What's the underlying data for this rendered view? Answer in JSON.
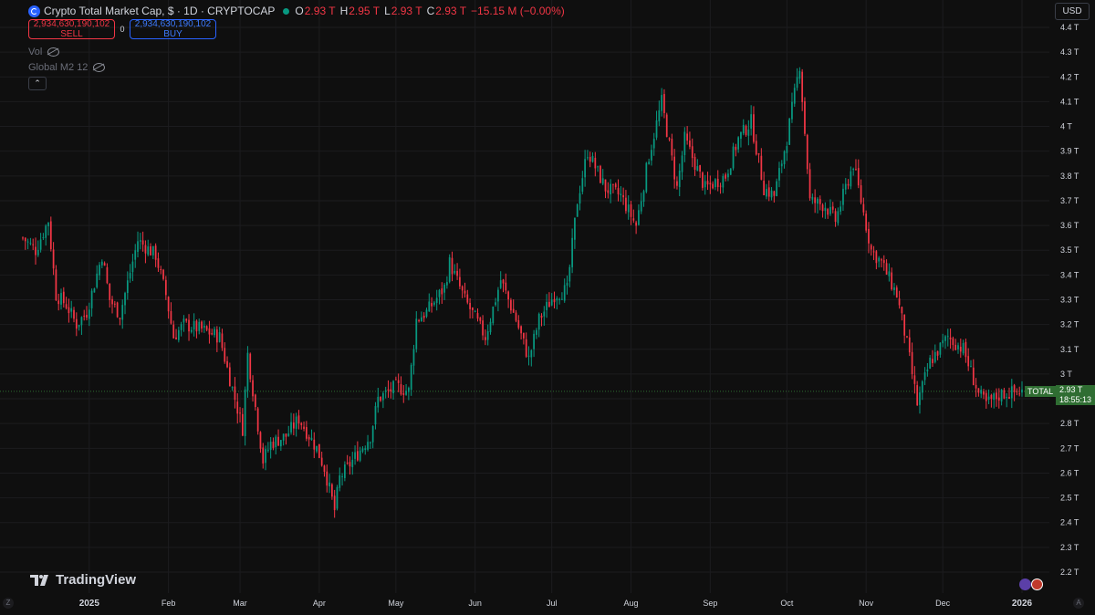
{
  "header": {
    "title": "Crypto Total Market Cap, $ · 1D · CRYPTOCAP",
    "ohlc": [
      {
        "k": "O",
        "v": "2.93 T"
      },
      {
        "k": "H",
        "v": "2.95 T"
      },
      {
        "k": "L",
        "v": "2.93 T"
      },
      {
        "k": "C",
        "v": "2.93 T"
      }
    ],
    "change": "−15.15 M (−0.00%)"
  },
  "trade": {
    "sell_price": "2,934,630,190,102",
    "sell_label": "SELL",
    "spread": "0",
    "buy_price": "2,934,630,190,102",
    "buy_label": "BUY"
  },
  "indicators": [
    "Vol",
    "Global M2 12"
  ],
  "currency": "USD",
  "logo_text": "TradingView",
  "last_price": {
    "symbol": "TOTAL",
    "value": "2.93 T",
    "countdown": "18:55:13"
  },
  "corners": {
    "left": "Z",
    "right": "A"
  },
  "colors": {
    "up": "#089981",
    "down": "#f23645",
    "background": "#0f0f0f",
    "grid": "#1c1c1f"
  },
  "chart_data": {
    "type": "candlestick",
    "title": "Crypto Total Market Cap, $ · 1D · CRYPTOCAP",
    "y_axis_labels": [
      "4.4 T",
      "4.3 T",
      "4.2 T",
      "4.1 T",
      "4 T",
      "3.9 T",
      "3.8 T",
      "3.7 T",
      "3.6 T",
      "3.5 T",
      "3.4 T",
      "3.3 T",
      "3.2 T",
      "3.1 T",
      "3 T",
      "2.9 T",
      "2.8 T",
      "2.7 T",
      "2.6 T",
      "2.5 T",
      "2.4 T",
      "2.3 T",
      "2.2 T"
    ],
    "y_ticks": [
      4.4,
      4.3,
      4.2,
      4.1,
      4.0,
      3.9,
      3.8,
      3.7,
      3.6,
      3.5,
      3.4,
      3.3,
      3.2,
      3.1,
      3.0,
      2.9,
      2.8,
      2.7,
      2.6,
      2.5,
      2.4,
      2.3,
      2.2
    ],
    "x_axis_labels": [
      "2025",
      "Feb",
      "Mar",
      "Apr",
      "May",
      "Jun",
      "Jul",
      "Aug",
      "Sep",
      "Oct",
      "Nov",
      "Dec",
      "2026"
    ],
    "ylim": [
      2.2,
      4.4
    ],
    "ylabel_unit": "T USD",
    "x_start": "2024-12-06",
    "x_end": "2026-01-01",
    "close_path": [
      [
        "2024-12-06",
        3.55
      ],
      [
        "2024-12-11",
        3.5
      ],
      [
        "2024-12-16",
        3.62
      ],
      [
        "2024-12-19",
        3.32
      ],
      [
        "2024-12-23",
        3.28
      ],
      [
        "2024-12-27",
        3.2
      ],
      [
        "2024-12-31",
        3.25
      ],
      [
        "2025-01-06",
        3.48
      ],
      [
        "2025-01-09",
        3.3
      ],
      [
        "2025-01-13",
        3.24
      ],
      [
        "2025-01-20",
        3.54
      ],
      [
        "2025-01-27",
        3.48
      ],
      [
        "2025-01-31",
        3.32
      ],
      [
        "2025-02-03",
        3.15
      ],
      [
        "2025-02-07",
        3.2
      ],
      [
        "2025-02-14",
        3.18
      ],
      [
        "2025-02-21",
        3.15
      ],
      [
        "2025-02-25",
        2.98
      ],
      [
        "2025-03-02",
        2.78
      ],
      [
        "2025-03-04",
        3.08
      ],
      [
        "2025-03-10",
        2.65
      ],
      [
        "2025-03-13",
        2.72
      ],
      [
        "2025-03-19",
        2.75
      ],
      [
        "2025-03-24",
        2.82
      ],
      [
        "2025-03-31",
        2.7
      ],
      [
        "2025-04-03",
        2.62
      ],
      [
        "2025-04-07",
        2.45
      ],
      [
        "2025-04-09",
        2.58
      ],
      [
        "2025-04-14",
        2.65
      ],
      [
        "2025-04-21",
        2.75
      ],
      [
        "2025-04-24",
        2.9
      ],
      [
        "2025-05-01",
        2.95
      ],
      [
        "2025-05-06",
        2.93
      ],
      [
        "2025-05-09",
        3.22
      ],
      [
        "2025-05-13",
        3.25
      ],
      [
        "2025-05-20",
        3.35
      ],
      [
        "2025-05-22",
        3.45
      ],
      [
        "2025-05-28",
        3.3
      ],
      [
        "2025-06-05",
        3.15
      ],
      [
        "2025-06-11",
        3.38
      ],
      [
        "2025-06-17",
        3.22
      ],
      [
        "2025-06-22",
        3.06
      ],
      [
        "2025-06-26",
        3.22
      ],
      [
        "2025-07-02",
        3.32
      ],
      [
        "2025-07-07",
        3.34
      ],
      [
        "2025-07-11",
        3.7
      ],
      [
        "2025-07-15",
        3.9
      ],
      [
        "2025-07-22",
        3.75
      ],
      [
        "2025-07-28",
        3.72
      ],
      [
        "2025-08-03",
        3.6
      ],
      [
        "2025-08-08",
        3.88
      ],
      [
        "2025-08-13",
        4.1
      ],
      [
        "2025-08-19",
        3.75
      ],
      [
        "2025-08-22",
        3.95
      ],
      [
        "2025-08-30",
        3.75
      ],
      [
        "2025-09-07",
        3.8
      ],
      [
        "2025-09-12",
        3.95
      ],
      [
        "2025-09-17",
        4.02
      ],
      [
        "2025-09-22",
        3.75
      ],
      [
        "2025-09-26",
        3.72
      ],
      [
        "2025-10-01",
        3.95
      ],
      [
        "2025-10-06",
        4.25
      ],
      [
        "2025-10-10",
        3.7
      ],
      [
        "2025-10-16",
        3.68
      ],
      [
        "2025-10-20",
        3.62
      ],
      [
        "2025-10-27",
        3.85
      ],
      [
        "2025-11-03",
        3.5
      ],
      [
        "2025-11-07",
        3.45
      ],
      [
        "2025-11-13",
        3.32
      ],
      [
        "2025-11-17",
        3.12
      ],
      [
        "2025-11-21",
        2.88
      ],
      [
        "2025-11-26",
        3.05
      ],
      [
        "2025-12-03",
        3.15
      ],
      [
        "2025-12-09",
        3.1
      ],
      [
        "2025-12-15",
        2.92
      ],
      [
        "2025-12-18",
        2.88
      ],
      [
        "2025-12-24",
        2.92
      ],
      [
        "2026-01-01",
        2.93
      ]
    ]
  }
}
